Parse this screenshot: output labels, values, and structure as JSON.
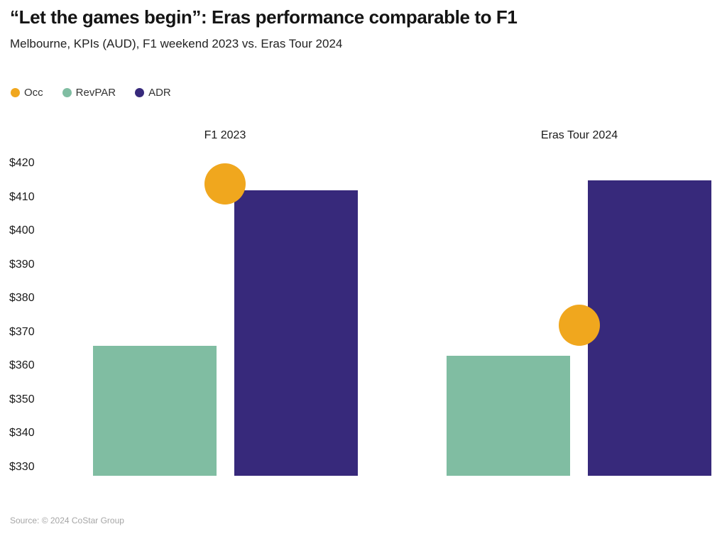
{
  "header": {
    "title": "“Let the games begin”: Eras performance comparable to F1",
    "subtitle": "Melbourne, KPIs (AUD), F1 weekend 2023 vs. Eras Tour 2024"
  },
  "legend": [
    {
      "label": "Occ",
      "color": "#F0A71E"
    },
    {
      "label": "RevPAR",
      "color": "#80BDA2"
    },
    {
      "label": "ADR",
      "color": "#37297B"
    }
  ],
  "footer": {
    "source": "Source: © 2024 CoStar Group"
  },
  "chart_data": {
    "type": "bar",
    "title": "“Let the games begin”: Eras performance comparable to F1",
    "subtitle": "Melbourne, KPIs (AUD), F1 weekend 2023 vs. Eras Tour 2024",
    "categories": [
      "F1 2023",
      "Eras Tour 2024"
    ],
    "series": [
      {
        "name": "Occ",
        "mark": "dot",
        "color": "#F0A71E",
        "values": [
          414,
          372
        ]
      },
      {
        "name": "RevPAR",
        "mark": "bar",
        "color": "#80BDA2",
        "values": [
          366,
          363
        ]
      },
      {
        "name": "ADR",
        "mark": "bar",
        "color": "#37297B",
        "values": [
          412,
          415
        ]
      }
    ],
    "xlabel": "",
    "ylabel": "",
    "y_ticks": [
      "$420",
      "$410",
      "$400",
      "$390",
      "$380",
      "$370",
      "$360",
      "$350",
      "$340",
      "$330"
    ],
    "y_tick_values": [
      420,
      410,
      400,
      390,
      380,
      370,
      360,
      350,
      340,
      330
    ],
    "ylim": [
      327.5,
      423
    ],
    "currency_prefix": "$",
    "grid": false,
    "legend_position": "top-left"
  }
}
